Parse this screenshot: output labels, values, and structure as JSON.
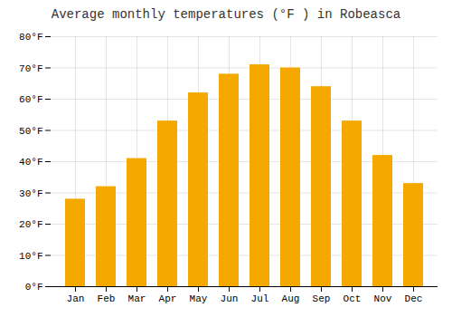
{
  "chart_data": {
    "type": "bar",
    "title": "Average monthly temperatures (°F ) in Robeasca",
    "categories": [
      "Jan",
      "Feb",
      "Mar",
      "Apr",
      "May",
      "Jun",
      "Jul",
      "Aug",
      "Sep",
      "Oct",
      "Nov",
      "Dec"
    ],
    "values": [
      28,
      32,
      41,
      53,
      62,
      68,
      71,
      70,
      64,
      53,
      42,
      33
    ],
    "color": "#F5A800",
    "ylim": [
      0,
      80
    ],
    "yticks": [
      {
        "value": 0,
        "label": "0°F"
      },
      {
        "value": 10,
        "label": "10°F"
      },
      {
        "value": 20,
        "label": "20°F"
      },
      {
        "value": 30,
        "label": "30°F"
      },
      {
        "value": 40,
        "label": "40°F"
      },
      {
        "value": 50,
        "label": "50°F"
      },
      {
        "value": 60,
        "label": "60°F"
      },
      {
        "value": 70,
        "label": "70°F"
      },
      {
        "value": 80,
        "label": "80°F"
      }
    ],
    "grid": true
  }
}
